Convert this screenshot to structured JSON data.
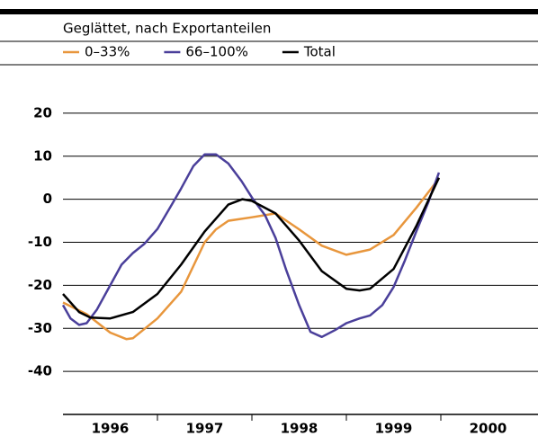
{
  "chart_data": {
    "type": "line",
    "subtitle": "Geglättet, nach Exportanteilen",
    "xlim": [
      1996,
      2001
    ],
    "xticks": [
      1996,
      1997,
      1998,
      1999,
      2000
    ],
    "ylim": [
      -50,
      30
    ],
    "yticks": [
      20,
      10,
      0,
      -10,
      -20,
      -30,
      -40
    ],
    "grid": true,
    "series": [
      {
        "name": "0–33%",
        "color": "#e8963c",
        "x": [
          1996,
          1996.25,
          1996.5,
          1996.67,
          1996.74,
          1997,
          1997.25,
          1997.5,
          1997.62,
          1997.75,
          1998,
          1998.25,
          1998.5,
          1998.74,
          1999,
          1999.25,
          1999.5,
          1999.74,
          1999.98
        ],
        "values": [
          -24,
          -26.7,
          -31,
          -32.5,
          -32.3,
          -27.7,
          -21.5,
          -10,
          -7,
          -5,
          -4.2,
          -3.3,
          -7,
          -10.8,
          -12.9,
          -11.7,
          -8.3,
          -2,
          4.8
        ]
      },
      {
        "name": "66–100%",
        "color": "#4a3f9a",
        "x": [
          1996,
          1996.08,
          1996.17,
          1996.25,
          1996.36,
          1996.5,
          1996.62,
          1996.74,
          1996.86,
          1997,
          1997.14,
          1997.25,
          1997.38,
          1997.5,
          1997.62,
          1997.75,
          1997.89,
          1998,
          1998.14,
          1998.25,
          1998.36,
          1998.5,
          1998.62,
          1998.74,
          1998.88,
          1999,
          1999.14,
          1999.25,
          1999.38,
          1999.5,
          1999.62,
          1999.74,
          1999.87,
          1999.98
        ],
        "values": [
          -24.6,
          -27.7,
          -29.2,
          -28.8,
          -25.6,
          -20,
          -15.2,
          -12.5,
          -10.4,
          -6.9,
          -1.7,
          2.5,
          7.7,
          10.4,
          10.4,
          8.3,
          4.2,
          0.4,
          -3.75,
          -9,
          -16.25,
          -24.6,
          -30.8,
          -32,
          -30.4,
          -28.8,
          -27.7,
          -27,
          -24.6,
          -20.4,
          -14.2,
          -7.5,
          -0.6,
          6.2
        ]
      },
      {
        "name": "Total",
        "color": "#000000",
        "x": [
          1996,
          1996.17,
          1996.29,
          1996.5,
          1996.74,
          1997,
          1997.25,
          1997.5,
          1997.75,
          1997.9,
          1998,
          1998.25,
          1998.5,
          1998.74,
          1999,
          1999.14,
          1999.25,
          1999.5,
          1999.74,
          1999.98
        ],
        "values": [
          -22,
          -26.2,
          -27.5,
          -27.7,
          -26.2,
          -22,
          -15.2,
          -7.5,
          -1.25,
          0,
          -0.4,
          -3.3,
          -9.6,
          -16.7,
          -20.8,
          -21.2,
          -20.8,
          -16.2,
          -6.25,
          5
        ]
      }
    ]
  }
}
